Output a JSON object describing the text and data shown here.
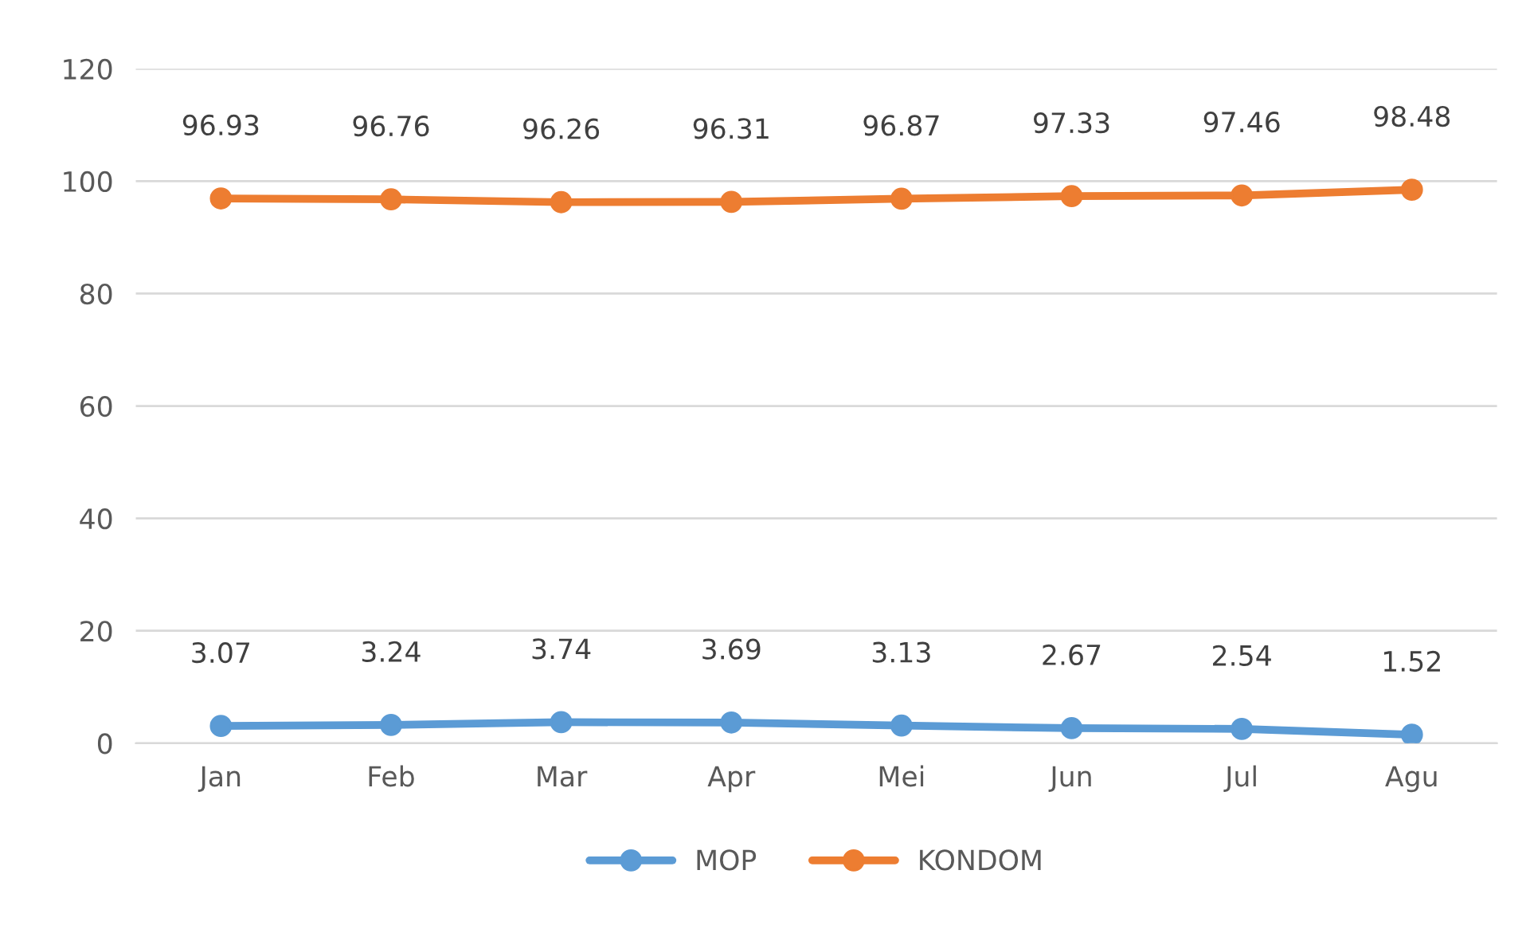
{
  "chart_data": {
    "type": "line",
    "categories": [
      "Jan",
      "Feb",
      "Mar",
      "Apr",
      "Mei",
      "Jun",
      "Jul",
      "Agu"
    ],
    "series": [
      {
        "name": "MOP",
        "color": "#5b9bd5",
        "values": [
          3.07,
          3.24,
          3.74,
          3.69,
          3.13,
          2.67,
          2.54,
          1.52
        ]
      },
      {
        "name": "KONDOM",
        "color": "#ed7d31",
        "values": [
          96.93,
          96.76,
          96.26,
          96.31,
          96.87,
          97.33,
          97.46,
          98.48
        ]
      }
    ],
    "ylim": [
      0,
      120
    ],
    "yticks": [
      0,
      20,
      40,
      60,
      80,
      100,
      120
    ],
    "grid": "y",
    "legend": "bottom",
    "marker": "circle",
    "line_style": "solid",
    "data_labels": true
  }
}
